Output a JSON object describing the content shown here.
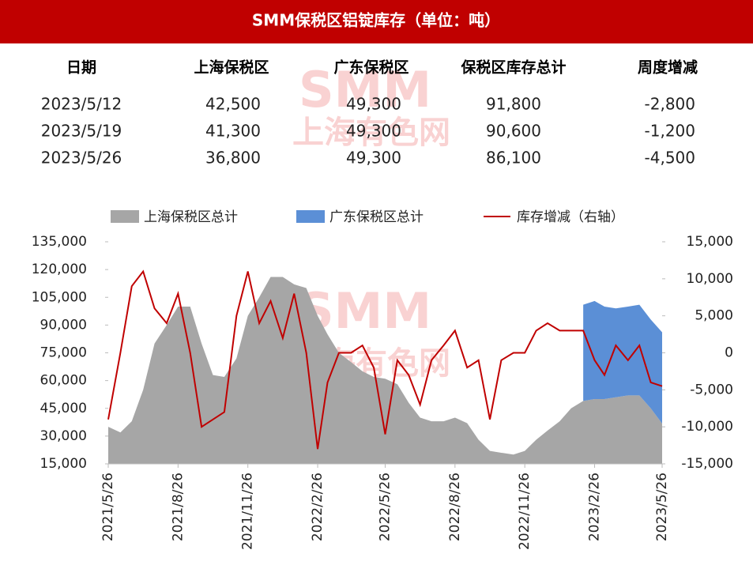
{
  "title": "SMM保税区铝锭库存（单位：吨）",
  "watermark": [
    "SMM",
    "上海有色网"
  ],
  "table": {
    "headers": [
      "日期",
      "上海保税区",
      "广东保税区",
      "保税区库存总计",
      "周度增减"
    ],
    "rows": [
      [
        "2023/5/12",
        "42,500",
        "49,300",
        "91,800",
        "-2,800"
      ],
      [
        "2023/5/19",
        "41,300",
        "49,300",
        "90,600",
        "-1,200"
      ],
      [
        "2023/5/26",
        "36,800",
        "49,300",
        "86,100",
        "-4,500"
      ]
    ]
  },
  "chart_data": {
    "type": "area",
    "x": [
      "2021/5/26",
      "2021/6/11",
      "2021/6/26",
      "2021/7/11",
      "2021/7/26",
      "2021/8/11",
      "2021/8/26",
      "2021/9/11",
      "2021/9/26",
      "2021/10/11",
      "2021/10/26",
      "2021/11/11",
      "2021/11/26",
      "2021/12/11",
      "2021/12/26",
      "2022/1/11",
      "2022/1/26",
      "2022/2/11",
      "2022/2/26",
      "2022/3/11",
      "2022/3/26",
      "2022/4/11",
      "2022/4/26",
      "2022/5/11",
      "2022/5/26",
      "2022/6/11",
      "2022/6/26",
      "2022/7/11",
      "2022/7/26",
      "2022/8/11",
      "2022/8/26",
      "2022/9/11",
      "2022/9/26",
      "2022/10/11",
      "2022/10/26",
      "2022/11/11",
      "2022/11/26",
      "2022/12/11",
      "2022/12/26",
      "2023/1/11",
      "2023/1/26",
      "2023/2/11",
      "2023/2/26",
      "2023/3/11",
      "2023/3/26",
      "2023/4/11",
      "2023/4/26",
      "2023/5/11",
      "2023/5/26"
    ],
    "series": [
      {
        "name": "上海保税区总计",
        "type": "area",
        "color": "#a6a6a6",
        "values": [
          35000,
          32000,
          38000,
          55000,
          80000,
          90000,
          100000,
          100000,
          80000,
          63000,
          62000,
          72000,
          95000,
          105000,
          116000,
          116000,
          112000,
          110000,
          95000,
          85000,
          75000,
          70000,
          65000,
          62000,
          61000,
          58000,
          48000,
          40000,
          38000,
          38000,
          40000,
          37000,
          28000,
          22000,
          21000,
          20000,
          22000,
          28000,
          33000,
          38000,
          45000,
          49000,
          50000,
          50000,
          51000,
          52000,
          52000,
          45000,
          36800
        ]
      },
      {
        "name": "广东保税区总计",
        "type": "area",
        "stacked": true,
        "color": "#5b8fd6",
        "values": [
          null,
          null,
          null,
          null,
          null,
          null,
          null,
          null,
          null,
          null,
          null,
          null,
          null,
          null,
          null,
          null,
          null,
          null,
          null,
          null,
          null,
          null,
          null,
          null,
          null,
          null,
          null,
          null,
          null,
          null,
          null,
          null,
          null,
          null,
          null,
          null,
          null,
          null,
          null,
          null,
          null,
          52000,
          53000,
          50000,
          48000,
          48000,
          49000,
          48000,
          49300
        ]
      },
      {
        "name": "库存增减（右轴）",
        "type": "line",
        "axis": "y2",
        "color": "#c00000",
        "values": [
          -9000,
          0,
          9000,
          11000,
          6000,
          4000,
          8000,
          0,
          -10000,
          -9000,
          -8000,
          5000,
          11000,
          4000,
          7000,
          2000,
          8000,
          0,
          -13000,
          -4000,
          0,
          0,
          1000,
          -2000,
          -11000,
          -1000,
          -3000,
          -7000,
          -1000,
          1000,
          3000,
          -2000,
          -1000,
          -9000,
          -1000,
          0,
          0,
          3000,
          4000,
          3000,
          3000,
          3000,
          -1000,
          -3000,
          1000,
          -1000,
          1000,
          -4000,
          -4500
        ]
      }
    ],
    "xlim": [
      "2021/5/26",
      "2023/5/26"
    ],
    "xticks": [
      "2021/5/26",
      "2021/8/26",
      "2021/11/26",
      "2022/2/26",
      "2022/5/26",
      "2022/8/26",
      "2022/11/26",
      "2023/2/26",
      "2023/5/26"
    ],
    "ylim": [
      15000,
      135000
    ],
    "yticks": [
      {
        "value": 15000,
        "label": "15,000"
      },
      {
        "value": 30000,
        "label": "30,000"
      },
      {
        "value": 45000,
        "label": "45,000"
      },
      {
        "value": 60000,
        "label": "60,000"
      },
      {
        "value": 75000,
        "label": "75,000"
      },
      {
        "value": 90000,
        "label": "90,000"
      },
      {
        "value": 105000,
        "label": "105,000"
      },
      {
        "value": 120000,
        "label": "120,000"
      },
      {
        "value": 135000,
        "label": "135,000"
      }
    ],
    "y2lim": [
      -15000,
      15000
    ],
    "y2ticks": [
      {
        "value": -15000,
        "label": "-15,000"
      },
      {
        "value": -10000,
        "label": "-10,000"
      },
      {
        "value": -5000,
        "label": "-5,000"
      },
      0,
      {
        "value": 5000,
        "label": "5,000"
      },
      {
        "value": 10000,
        "label": "10,000"
      },
      {
        "value": 15000,
        "label": "15,000"
      }
    ],
    "legend": "top"
  }
}
